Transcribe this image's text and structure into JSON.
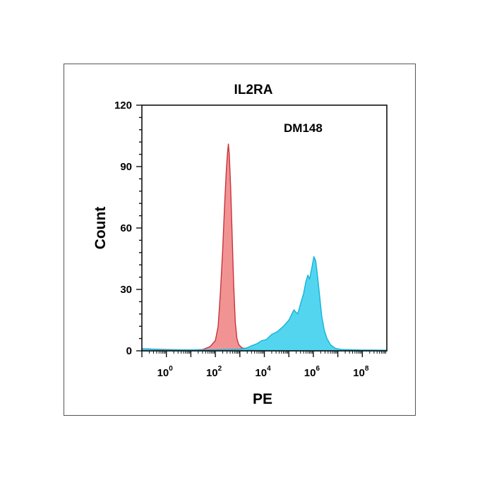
{
  "chart_data": {
    "type": "area",
    "title": "IL2RA",
    "annotation": "DM148",
    "xlabel": "PE",
    "ylabel": "Count",
    "x_scale": "log",
    "xlim": [
      0.1,
      1000000000
    ],
    "ylim": [
      0,
      120
    ],
    "x_ticks": [
      {
        "base": "10",
        "exp": "0",
        "value": 1
      },
      {
        "base": "10",
        "exp": "2",
        "value": 100
      },
      {
        "base": "10",
        "exp": "4",
        "value": 10000
      },
      {
        "base": "10",
        "exp": "6",
        "value": 1000000
      },
      {
        "base": "10",
        "exp": "8",
        "value": 100000000
      }
    ],
    "y_ticks": [
      0,
      30,
      60,
      90,
      120
    ],
    "grid": false,
    "series": [
      {
        "color": "#f08080",
        "stroke": "#c8323c",
        "points": [
          [
            0.1,
            1
          ],
          [
            1,
            0.6
          ],
          [
            10,
            0.4
          ],
          [
            30,
            0.6
          ],
          [
            60,
            2
          ],
          [
            100,
            5
          ],
          [
            130,
            12
          ],
          [
            160,
            28
          ],
          [
            200,
            50
          ],
          [
            240,
            72
          ],
          [
            280,
            88
          ],
          [
            310,
            96
          ],
          [
            340,
            101
          ],
          [
            370,
            96
          ],
          [
            420,
            80
          ],
          [
            480,
            58
          ],
          [
            560,
            32
          ],
          [
            650,
            14
          ],
          [
            760,
            6
          ],
          [
            900,
            3
          ],
          [
            1200,
            1.5
          ],
          [
            2000,
            0.8
          ],
          [
            5000,
            0.4
          ],
          [
            100000,
            0.2
          ],
          [
            1000000000,
            0.1
          ]
        ]
      },
      {
        "color": "#40d0ee",
        "stroke": "#14b4d8",
        "points": [
          [
            0.1,
            1
          ],
          [
            1,
            0.5
          ],
          [
            100,
            0.5
          ],
          [
            1000,
            0.8
          ],
          [
            2000,
            1.5
          ],
          [
            3000,
            2.5
          ],
          [
            5000,
            3.5
          ],
          [
            8000,
            5
          ],
          [
            12000,
            5.5
          ],
          [
            20000,
            8
          ],
          [
            35000,
            9.5
          ],
          [
            60000,
            12
          ],
          [
            100000,
            15
          ],
          [
            160000,
            20
          ],
          [
            230000,
            18
          ],
          [
            300000,
            23
          ],
          [
            400000,
            28
          ],
          [
            500000,
            34
          ],
          [
            600000,
            37
          ],
          [
            700000,
            35
          ],
          [
            850000,
            40
          ],
          [
            1050000,
            46
          ],
          [
            1250000,
            44
          ],
          [
            1500000,
            36
          ],
          [
            1800000,
            27
          ],
          [
            2200000,
            17
          ],
          [
            2800000,
            10
          ],
          [
            3600000,
            6
          ],
          [
            5000000,
            3
          ],
          [
            8000000,
            1.2
          ],
          [
            15000000,
            0.6
          ],
          [
            100000000,
            0.4
          ],
          [
            1000000000,
            0.3
          ]
        ]
      }
    ]
  }
}
